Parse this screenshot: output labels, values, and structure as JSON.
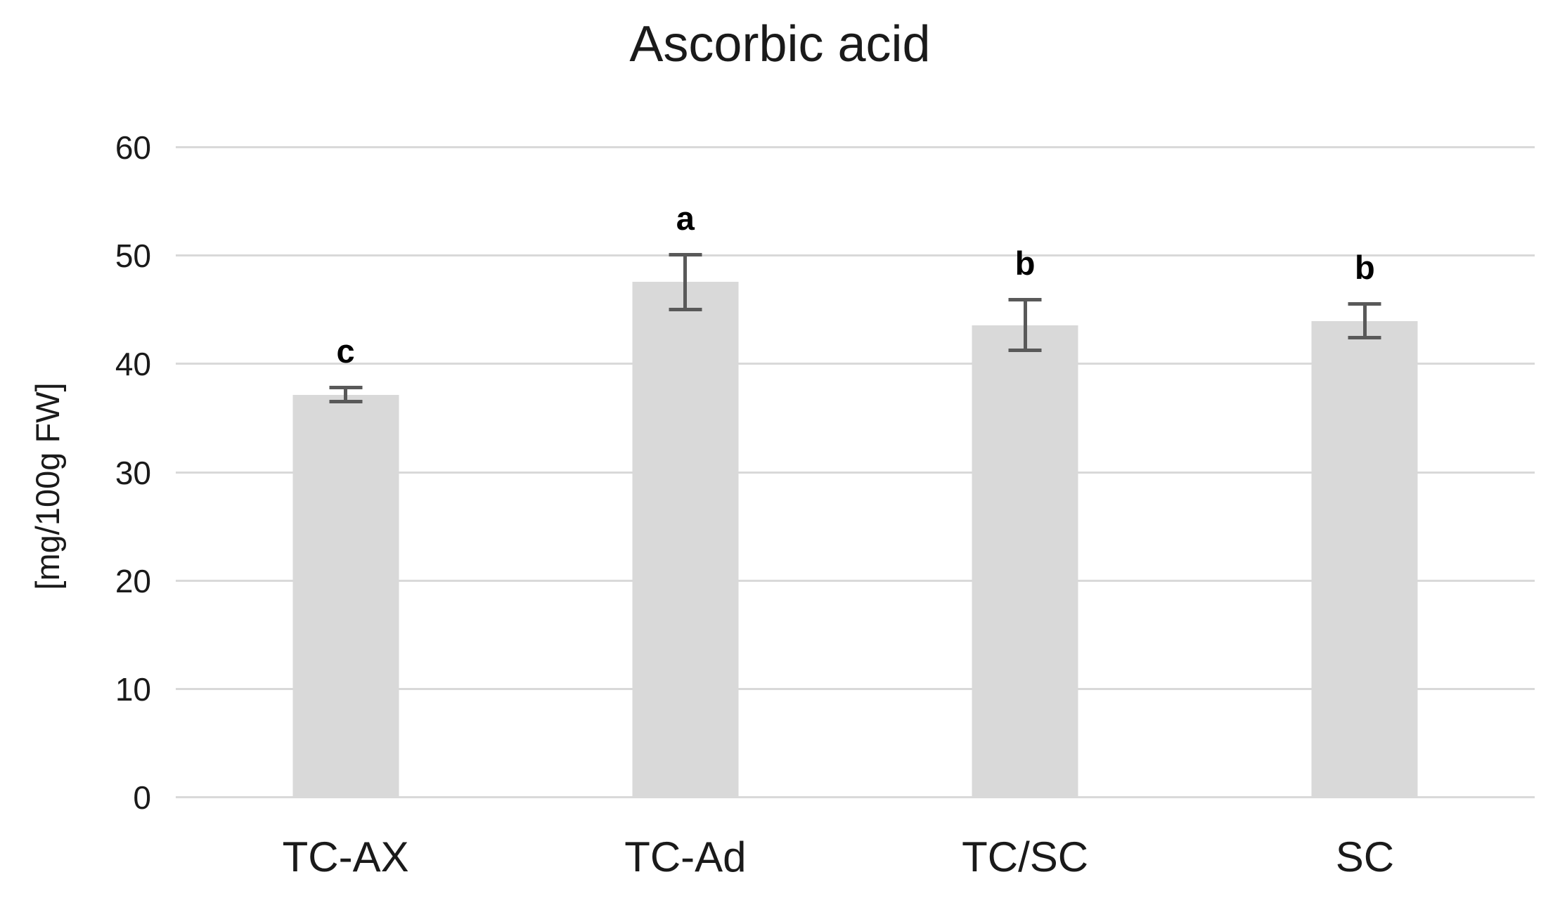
{
  "chart_data": {
    "type": "bar",
    "title": "Ascorbic acid",
    "xlabel": "",
    "ylabel": "[mg/100g FW]",
    "categories": [
      "TC-AX",
      "TC-Ad",
      "TC/SC",
      "SC"
    ],
    "values": [
      37.2,
      47.6,
      43.6,
      44.0
    ],
    "error_bars": [
      0.8,
      2.7,
      2.5,
      1.7
    ],
    "sig_letters": [
      "c",
      "a",
      "b",
      "b"
    ],
    "ylim": [
      0,
      60
    ],
    "yticks": [
      0,
      10,
      20,
      30,
      40,
      50,
      60
    ],
    "grid": "horizontal",
    "legend": "none",
    "colors": {
      "bar_fill": "#d9d9d9",
      "gridline": "#d9d9d9",
      "error_bar": "#595959",
      "text": "#1a1a1a",
      "background": "#ffffff"
    }
  }
}
